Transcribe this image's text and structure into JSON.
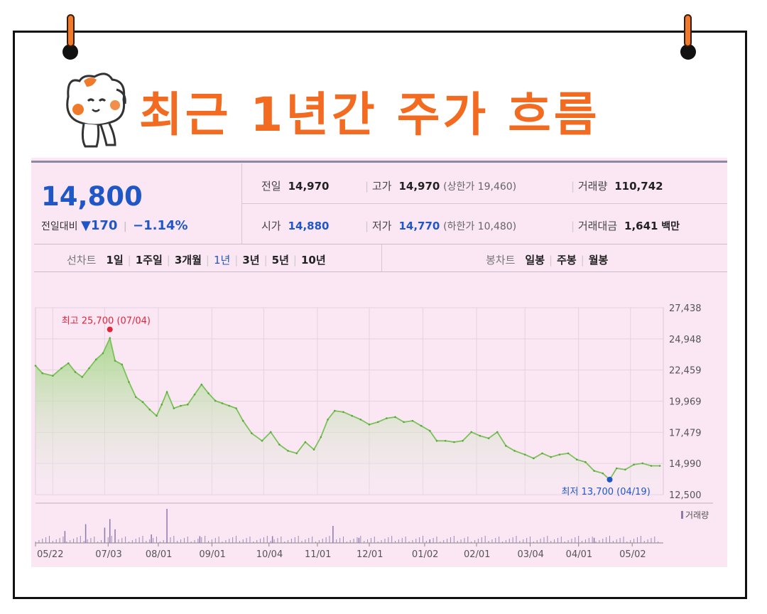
{
  "title": "최근 1년간 주가 흐름",
  "quote": {
    "price": "14,800",
    "change_label": "전일대비",
    "change_value": "▼170",
    "change_pct": "−1.14%",
    "prev_close_label": "전일",
    "prev_close": "14,970",
    "high_label": "고가",
    "high": "14,970",
    "upper_limit": "(상한가 19,460)",
    "volume_label": "거래량",
    "volume": "110,742",
    "open_label": "시가",
    "open": "14,880",
    "low_label": "저가",
    "low": "14,770",
    "lower_limit": "(하한가 10,480)",
    "amount_label": "거래대금",
    "amount": "1,641",
    "amount_unit": "백만"
  },
  "period_selector": {
    "label": "선차트",
    "options": [
      "1일",
      "1주일",
      "3개월",
      "1년",
      "3년",
      "5년",
      "10년"
    ],
    "selected": "1년"
  },
  "candle_selector": {
    "label": "봉차트",
    "options": [
      "일봉",
      "주봉",
      "월봉"
    ]
  },
  "colors": {
    "accent": "#f26b21",
    "blue": "#1f57c7",
    "red": "#e0263a",
    "line": "#7cc25a",
    "panel": "#fbe6f3"
  },
  "chart_data": {
    "type": "area",
    "grid": true,
    "ylim": [
      12500,
      27438
    ],
    "y_ticks": [
      "27,438",
      "24,948",
      "22,459",
      "19,969",
      "17,479",
      "14,990",
      "12,500"
    ],
    "x_tick_labels": [
      "05/22",
      "07/03",
      "08/01",
      "09/01",
      "10/04",
      "11/01",
      "12/01",
      "01/02",
      "02/01",
      "03/04",
      "04/01",
      "05/02"
    ],
    "x_start": "2022-05-22",
    "x_end": "2023-05-20",
    "series": [
      {
        "points": [
          [
            "2022-05-22",
            22800
          ],
          [
            "2022-05-26",
            22200
          ],
          [
            "2022-06-01",
            22000
          ],
          [
            "2022-06-06",
            22600
          ],
          [
            "2022-06-10",
            23000
          ],
          [
            "2022-06-14",
            22300
          ],
          [
            "2022-06-18",
            21900
          ],
          [
            "2022-06-22",
            22600
          ],
          [
            "2022-06-26",
            23300
          ],
          [
            "2022-06-30",
            23800
          ],
          [
            "2022-07-04",
            25000
          ],
          [
            "2022-07-07",
            23200
          ],
          [
            "2022-07-11",
            22900
          ],
          [
            "2022-07-15",
            21500
          ],
          [
            "2022-07-19",
            20300
          ],
          [
            "2022-07-23",
            19900
          ],
          [
            "2022-07-27",
            19300
          ],
          [
            "2022-07-31",
            18800
          ],
          [
            "2022-08-03",
            19700
          ],
          [
            "2022-08-06",
            20700
          ],
          [
            "2022-08-10",
            19400
          ],
          [
            "2022-08-14",
            19600
          ],
          [
            "2022-08-18",
            19700
          ],
          [
            "2022-08-22",
            20500
          ],
          [
            "2022-08-26",
            21300
          ],
          [
            "2022-08-30",
            20600
          ],
          [
            "2022-09-03",
            20000
          ],
          [
            "2022-09-07",
            19800
          ],
          [
            "2022-09-11",
            19600
          ],
          [
            "2022-09-15",
            19400
          ],
          [
            "2022-09-19",
            18400
          ],
          [
            "2022-09-24",
            17400
          ],
          [
            "2022-09-30",
            16800
          ],
          [
            "2022-10-05",
            17500
          ],
          [
            "2022-10-10",
            16500
          ],
          [
            "2022-10-15",
            16000
          ],
          [
            "2022-10-20",
            15800
          ],
          [
            "2022-10-25",
            16700
          ],
          [
            "2022-10-30",
            16100
          ],
          [
            "2022-11-03",
            17100
          ],
          [
            "2022-11-07",
            18500
          ],
          [
            "2022-11-11",
            19200
          ],
          [
            "2022-11-16",
            19100
          ],
          [
            "2022-11-21",
            18800
          ],
          [
            "2022-11-26",
            18500
          ],
          [
            "2022-12-01",
            18100
          ],
          [
            "2022-12-06",
            18300
          ],
          [
            "2022-12-11",
            18600
          ],
          [
            "2022-12-16",
            18700
          ],
          [
            "2022-12-21",
            18300
          ],
          [
            "2022-12-26",
            18400
          ],
          [
            "2022-12-31",
            18000
          ],
          [
            "2023-01-05",
            17600
          ],
          [
            "2023-01-09",
            16800
          ],
          [
            "2023-01-14",
            16800
          ],
          [
            "2023-01-19",
            16700
          ],
          [
            "2023-01-24",
            16800
          ],
          [
            "2023-01-29",
            17500
          ],
          [
            "2023-02-03",
            17200
          ],
          [
            "2023-02-08",
            17000
          ],
          [
            "2023-02-13",
            17500
          ],
          [
            "2023-02-18",
            16400
          ],
          [
            "2023-02-23",
            16000
          ],
          [
            "2023-03-01",
            15700
          ],
          [
            "2023-03-06",
            15400
          ],
          [
            "2023-03-11",
            15800
          ],
          [
            "2023-03-16",
            15500
          ],
          [
            "2023-03-21",
            15700
          ],
          [
            "2023-03-26",
            15800
          ],
          [
            "2023-03-31",
            15300
          ],
          [
            "2023-04-05",
            15100
          ],
          [
            "2023-04-10",
            14400
          ],
          [
            "2023-04-15",
            14200
          ],
          [
            "2023-04-19",
            13700
          ],
          [
            "2023-04-23",
            14600
          ],
          [
            "2023-04-28",
            14500
          ],
          [
            "2023-05-03",
            14900
          ],
          [
            "2023-05-08",
            15000
          ],
          [
            "2023-05-13",
            14800
          ],
          [
            "2023-05-18",
            14800
          ]
        ]
      }
    ],
    "annotations": [
      {
        "text": "최고 25,700 (07/04)",
        "x": "2022-07-04",
        "y": 25700,
        "color": "#e0263a"
      },
      {
        "text": "최저 13,700 (04/19)",
        "x": "2023-04-19",
        "y": 13700,
        "color": "#1f57c7"
      }
    ],
    "volume": {
      "legend": "거래량",
      "spikes": [
        [
          "2022-06-08",
          0.35
        ],
        [
          "2022-06-20",
          0.55
        ],
        [
          "2022-07-01",
          0.45
        ],
        [
          "2022-07-04",
          0.7
        ],
        [
          "2022-07-07",
          0.4
        ],
        [
          "2022-07-28",
          0.25
        ],
        [
          "2022-08-06",
          1.0
        ],
        [
          "2022-08-25",
          0.2
        ],
        [
          "2022-10-06",
          0.2
        ],
        [
          "2022-11-10",
          0.5
        ],
        [
          "2022-11-25",
          0.15
        ],
        [
          "2023-01-05",
          0.1
        ],
        [
          "2023-04-10",
          0.15
        ]
      ]
    }
  }
}
